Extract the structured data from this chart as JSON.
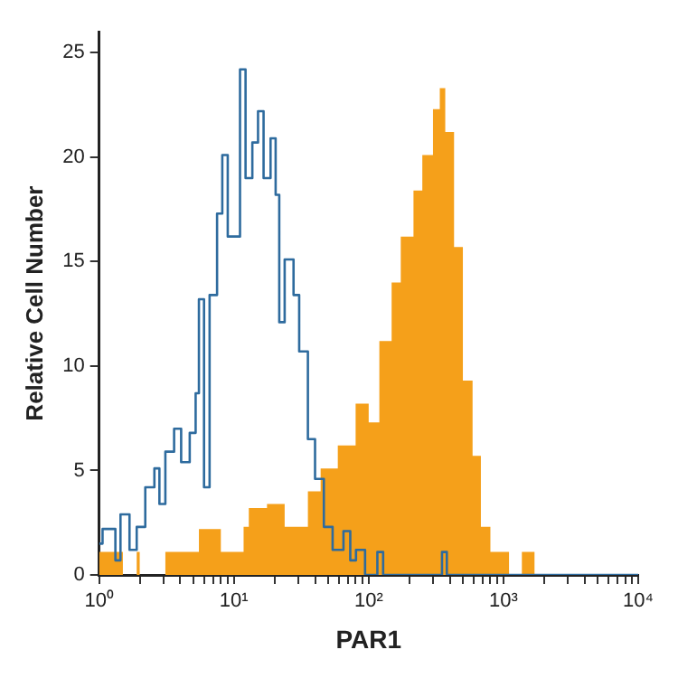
{
  "chart_data": {
    "type": "area",
    "xlabel": "PAR1",
    "ylabel": "Relative Cell Number",
    "log": "x",
    "grid": false,
    "marker": "none",
    "xlim": [
      1,
      10000
    ],
    "ylim": [
      0,
      26
    ],
    "xticks": [
      {
        "value": 1,
        "label": "10⁰"
      },
      {
        "value": 2,
        "label": null
      },
      {
        "value": 3,
        "label": null
      },
      {
        "value": 4,
        "label": null
      },
      {
        "value": 5,
        "label": null
      },
      {
        "value": 6,
        "label": null
      },
      {
        "value": 7,
        "label": null
      },
      {
        "value": 8,
        "label": null
      },
      {
        "value": 9,
        "label": null
      },
      {
        "value": 10,
        "label": "10¹"
      },
      {
        "value": 20,
        "label": null
      },
      {
        "value": 30,
        "label": null
      },
      {
        "value": 40,
        "label": null
      },
      {
        "value": 50,
        "label": null
      },
      {
        "value": 60,
        "label": null
      },
      {
        "value": 70,
        "label": null
      },
      {
        "value": 80,
        "label": null
      },
      {
        "value": 90,
        "label": null
      },
      {
        "value": 100,
        "label": "10²"
      },
      {
        "value": 200,
        "label": null
      },
      {
        "value": 300,
        "label": null
      },
      {
        "value": 400,
        "label": null
      },
      {
        "value": 500,
        "label": null
      },
      {
        "value": 600,
        "label": null
      },
      {
        "value": 700,
        "label": null
      },
      {
        "value": 800,
        "label": null
      },
      {
        "value": 900,
        "label": null
      },
      {
        "value": 1000,
        "label": "10³"
      },
      {
        "value": 2000,
        "label": null
      },
      {
        "value": 3000,
        "label": null
      },
      {
        "value": 4000,
        "label": null
      },
      {
        "value": 5000,
        "label": null
      },
      {
        "value": 6000,
        "label": null
      },
      {
        "value": 7000,
        "label": null
      },
      {
        "value": 8000,
        "label": null
      },
      {
        "value": 9000,
        "label": null
      },
      {
        "value": 10000,
        "label": "10⁴"
      }
    ],
    "yticks": [
      0,
      5,
      10,
      15,
      20,
      25
    ],
    "series": [
      {
        "type": "area",
        "color": "#f5a01a",
        "x": [
          1,
          1.03,
          1.5,
          1.9,
          2.0,
          3.1,
          4.3,
          5.5,
          8,
          11.8,
          12.9,
          17.6,
          23.8,
          35.4,
          44,
          59,
          80,
          100,
          120,
          148,
          173,
          215,
          250,
          300,
          337,
          370,
          430,
          500,
          590,
          680,
          800,
          1000,
          1100,
          1370,
          1700,
          10000
        ],
        "values": [
          1.1,
          1.1,
          0,
          1.1,
          0,
          1.1,
          1.1,
          2.2,
          1.1,
          2.3,
          3.2,
          3.4,
          2.3,
          4,
          5.1,
          6.2,
          8.2,
          7.3,
          11.2,
          14,
          16.2,
          18.4,
          20.1,
          22.3,
          23.3,
          21.2,
          15.7,
          9.3,
          5.7,
          2.3,
          1.1,
          1.1,
          0,
          1.1,
          0,
          0
        ]
      },
      {
        "type": "step",
        "color": "#2e6b9e",
        "x": [
          1,
          1.06,
          1.32,
          1.44,
          1.68,
          1.9,
          2.2,
          2.57,
          2.8,
          3.1,
          3.6,
          4.06,
          4.7,
          5.2,
          5.5,
          6.0,
          6.6,
          7.5,
          8.2,
          9.0,
          11.1,
          12.2,
          13.7,
          15.1,
          16.6,
          18.7,
          20.4,
          21.7,
          23.8,
          27.7,
          30.5,
          35.4,
          40,
          46.5,
          54,
          65,
          73,
          80.5,
          94,
          116,
          128,
          330,
          350,
          380,
          10000
        ],
        "values": [
          1.5,
          2.2,
          0.7,
          2.9,
          1.2,
          2.3,
          4.2,
          5.1,
          3.4,
          5.9,
          7,
          5.4,
          6.8,
          8.7,
          13.2,
          4.2,
          13.4,
          17.3,
          20.1,
          16.2,
          24.2,
          19,
          20.7,
          22.2,
          19,
          20.9,
          18.2,
          12.1,
          15.1,
          13.4,
          10.7,
          6.5,
          4.6,
          2.3,
          1.2,
          2.1,
          0.7,
          1.2,
          0,
          1.1,
          0,
          0,
          1.1,
          0,
          0
        ]
      }
    ]
  }
}
